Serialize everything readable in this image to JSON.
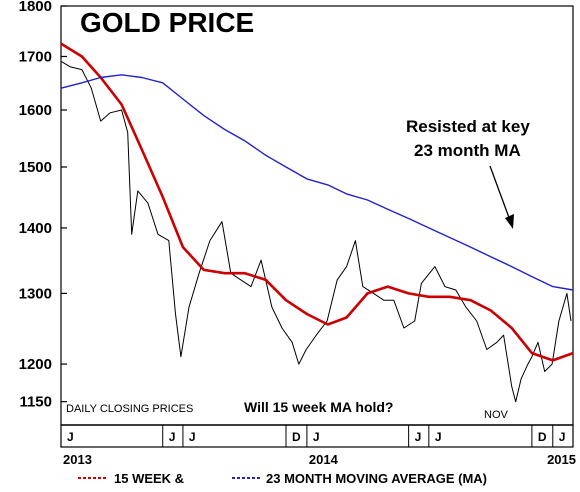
{
  "chart_data": {
    "type": "line",
    "title": "GOLD PRICE",
    "y_scale": "log",
    "ylim": [
      1120,
      1800
    ],
    "y_ticks": [
      {
        "value": 1800,
        "label": "1800"
      },
      {
        "value": 1700,
        "label": "1700"
      },
      {
        "value": 1600,
        "label": "1600"
      },
      {
        "value": 1500,
        "label": "1500"
      },
      {
        "value": 1400,
        "label": "1400"
      },
      {
        "value": 1300,
        "label": "1300"
      },
      {
        "value": 1200,
        "label": "1200"
      },
      {
        "value": 1150,
        "label": "1150"
      }
    ],
    "x_range": [
      "2013-01-01",
      "2015-01-31"
    ],
    "month_ticks": [
      {
        "date": "2013-01-01",
        "label": "J"
      },
      {
        "date": "2013-06-01",
        "label": "J"
      },
      {
        "date": "2013-07-01",
        "label": "J"
      },
      {
        "date": "2013-12-01",
        "label": "D"
      },
      {
        "date": "2014-01-01",
        "label": "J"
      },
      {
        "date": "2014-06-01",
        "label": "J"
      },
      {
        "date": "2014-07-01",
        "label": "J"
      },
      {
        "date": "2014-12-01",
        "label": "D"
      },
      {
        "date": "2015-01-01",
        "label": "J"
      }
    ],
    "year_labels": [
      {
        "date": "2013-01-01",
        "label": "2013"
      },
      {
        "date": "2014-01-01",
        "label": "2014"
      },
      {
        "date": "2015-01-01",
        "label": "2015"
      }
    ],
    "series": [
      {
        "key": "daily",
        "color": "#000000",
        "x": [
          "2013-01-02",
          "2013-01-15",
          "2013-02-01",
          "2013-02-15",
          "2013-03-01",
          "2013-03-15",
          "2013-04-01",
          "2013-04-10",
          "2013-04-16",
          "2013-04-25",
          "2013-05-10",
          "2013-05-25",
          "2013-06-10",
          "2013-06-20",
          "2013-06-28",
          "2013-07-10",
          "2013-07-25",
          "2013-08-10",
          "2013-08-28",
          "2013-09-10",
          "2013-09-25",
          "2013-10-10",
          "2013-10-25",
          "2013-11-10",
          "2013-11-25",
          "2013-12-10",
          "2013-12-20",
          "2013-12-31",
          "2014-01-15",
          "2014-01-31",
          "2014-02-15",
          "2014-03-01",
          "2014-03-14",
          "2014-03-25",
          "2014-04-10",
          "2014-04-25",
          "2014-05-10",
          "2014-05-25",
          "2014-06-10",
          "2014-06-20",
          "2014-07-10",
          "2014-07-25",
          "2014-08-10",
          "2014-08-25",
          "2014-09-10",
          "2014-09-25",
          "2014-10-10",
          "2014-10-20",
          "2014-11-01",
          "2014-11-07",
          "2014-11-15",
          "2014-11-25",
          "2014-12-01",
          "2014-12-10",
          "2014-12-20",
          "2014-12-31",
          "2015-01-10",
          "2015-01-22",
          "2015-01-28"
        ],
        "values": [
          1690,
          1680,
          1675,
          1640,
          1580,
          1595,
          1600,
          1560,
          1390,
          1460,
          1440,
          1390,
          1380,
          1270,
          1210,
          1280,
          1330,
          1380,
          1410,
          1330,
          1320,
          1310,
          1350,
          1280,
          1250,
          1230,
          1200,
          1220,
          1240,
          1260,
          1320,
          1340,
          1380,
          1310,
          1300,
          1290,
          1290,
          1250,
          1260,
          1315,
          1340,
          1310,
          1305,
          1280,
          1260,
          1220,
          1230,
          1240,
          1170,
          1150,
          1180,
          1200,
          1210,
          1230,
          1190,
          1200,
          1260,
          1300,
          1260
        ]
      },
      {
        "key": "ma15",
        "color": "#cc0000",
        "x": [
          "2013-01-01",
          "2013-02-01",
          "2013-03-01",
          "2013-04-01",
          "2013-05-01",
          "2013-06-01",
          "2013-07-01",
          "2013-08-01",
          "2013-09-01",
          "2013-10-01",
          "2013-11-01",
          "2013-12-01",
          "2014-01-01",
          "2014-02-01",
          "2014-03-01",
          "2014-04-01",
          "2014-05-01",
          "2014-06-01",
          "2014-07-01",
          "2014-08-01",
          "2014-09-01",
          "2014-10-01",
          "2014-11-01",
          "2014-12-01",
          "2015-01-01",
          "2015-01-31"
        ],
        "values": [
          1725,
          1700,
          1660,
          1610,
          1530,
          1450,
          1370,
          1335,
          1330,
          1330,
          1320,
          1290,
          1270,
          1255,
          1265,
          1300,
          1310,
          1300,
          1295,
          1295,
          1290,
          1275,
          1250,
          1215,
          1205,
          1215
        ]
      },
      {
        "key": "ma23",
        "color": "#2222cc",
        "x": [
          "2013-01-01",
          "2013-02-01",
          "2013-03-01",
          "2013-04-01",
          "2013-05-01",
          "2013-06-01",
          "2013-07-01",
          "2013-08-01",
          "2013-09-01",
          "2013-10-01",
          "2013-11-01",
          "2013-12-01",
          "2014-01-01",
          "2014-02-01",
          "2014-03-01",
          "2014-04-01",
          "2014-05-01",
          "2014-06-01",
          "2014-07-01",
          "2014-08-01",
          "2014-09-01",
          "2014-10-01",
          "2014-11-01",
          "2014-12-01",
          "2015-01-01",
          "2015-01-31"
        ],
        "values": [
          1640,
          1650,
          1660,
          1665,
          1660,
          1650,
          1620,
          1590,
          1565,
          1545,
          1520,
          1500,
          1480,
          1470,
          1455,
          1445,
          1430,
          1415,
          1400,
          1385,
          1370,
          1355,
          1340,
          1325,
          1310,
          1305
        ]
      }
    ],
    "annotations": {
      "resisted_line1": "Resisted at key",
      "resisted_line2": "23 month MA",
      "daily_closing": "DAILY CLOSING PRICES",
      "question": "Will 15 week MA hold?",
      "nov": "NOV"
    },
    "legend": {
      "ma15_label": "15 WEEK  &",
      "ma23_label": "23 MONTH MOVING AVERAGE (MA)",
      "placement": "bottom"
    },
    "grid": false
  }
}
